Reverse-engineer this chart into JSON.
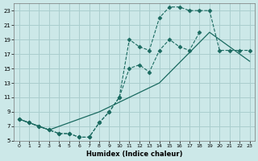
{
  "xlabel": "Humidex (Indice chaleur)",
  "background_color": "#cce8e8",
  "grid_color": "#aacece",
  "line_color": "#1a6a60",
  "xlim": [
    -0.5,
    23.5
  ],
  "ylim": [
    5,
    24
  ],
  "yticks": [
    5,
    7,
    9,
    11,
    13,
    15,
    17,
    19,
    21,
    23
  ],
  "xticks": [
    0,
    1,
    2,
    3,
    4,
    5,
    6,
    7,
    8,
    9,
    10,
    11,
    12,
    13,
    14,
    15,
    16,
    17,
    18,
    19,
    20,
    21,
    22,
    23
  ],
  "line1_x": [
    0,
    1,
    2,
    3,
    4,
    5,
    6,
    7,
    8,
    9,
    10,
    11,
    12,
    13,
    14,
    15,
    16,
    17,
    18
  ],
  "line1_y": [
    8,
    7.5,
    7,
    6.5,
    6,
    6,
    5.5,
    5.5,
    7.5,
    9,
    11,
    15,
    15.5,
    14.5,
    17.5,
    19,
    18,
    17.5,
    20
  ],
  "line2_x": [
    0,
    1,
    2,
    3,
    4,
    5,
    6,
    7,
    8,
    9,
    10,
    11,
    12,
    13,
    14,
    15,
    16,
    17,
    18,
    19,
    20,
    21,
    22,
    23
  ],
  "line2_y": [
    8,
    7.5,
    7,
    6.5,
    6,
    6,
    5.5,
    5.5,
    7.5,
    9,
    11,
    19,
    18,
    17.5,
    22,
    23.5,
    23.5,
    23,
    23,
    23,
    17.5,
    17.5,
    17.5,
    17.5
  ],
  "line3_x": [
    0,
    1,
    3,
    8,
    14,
    19,
    23
  ],
  "line3_y": [
    8,
    7.5,
    6.5,
    9,
    13,
    20,
    16
  ]
}
